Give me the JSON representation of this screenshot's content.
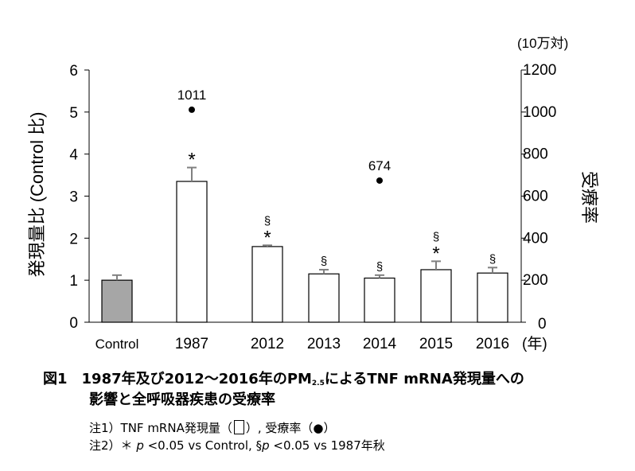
{
  "chart_data": {
    "type": "bar",
    "categories": [
      "Control",
      "1987",
      "2012",
      "2013",
      "2014",
      "2015",
      "2016"
    ],
    "series": [
      {
        "name": "TNF mRNA発現量",
        "values": [
          1.0,
          3.35,
          1.8,
          1.15,
          1.05,
          1.25,
          1.17
        ],
        "error": [
          0.12,
          0.33,
          0.03,
          0.1,
          0.07,
          0.2,
          0.13
        ],
        "colors": [
          "#a6a6a6",
          "#ffffff",
          "#ffffff",
          "#ffffff",
          "#ffffff",
          "#ffffff",
          "#ffffff"
        ]
      },
      {
        "name": "受療率",
        "type": "scatter",
        "x": [
          "1987",
          "2014"
        ],
        "values": [
          1011,
          674
        ],
        "labels": [
          "1011",
          "674"
        ]
      }
    ],
    "significance": [
      "",
      "*",
      "§*",
      "§",
      "§",
      "§*",
      "§"
    ],
    "ylabel": "発現量比 (Control 比)",
    "y2label": "受療率",
    "y2unit": "(10万対)",
    "xunit": "(年)",
    "ylim": [
      0,
      6
    ],
    "y2lim": [
      0,
      1200
    ],
    "yticks": [
      "0",
      "1",
      "2",
      "3",
      "4",
      "5",
      "6"
    ],
    "y2ticks": [
      "0",
      "200",
      "400",
      "600",
      "800",
      "1000",
      "1200"
    ],
    "grid": false,
    "legend": "none"
  },
  "caption": {
    "line1_before": "図1　1987年及び2012～2016年のPM",
    "line1_sub": "2.5",
    "line1_after": "によるTNF mRNA発現量への",
    "line2": "影響と全呼吸器疾患の受療率"
  },
  "notes": {
    "note1_before": "注1）TNF mRNA発現量（",
    "note1_after": "）, 受療率（●）",
    "note2_a": "注2）＊ ",
    "note2_p1": "p",
    "note2_b": " <0.05 vs Control, §",
    "note2_p2": "p",
    "note2_c": " <0.05 vs 1987年秋"
  }
}
